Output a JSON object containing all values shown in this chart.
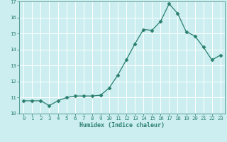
{
  "x": [
    0,
    1,
    2,
    3,
    4,
    5,
    6,
    7,
    8,
    9,
    10,
    11,
    12,
    13,
    14,
    15,
    16,
    17,
    18,
    19,
    20,
    21,
    22,
    23
  ],
  "y": [
    10.8,
    10.8,
    10.8,
    10.5,
    10.8,
    11.0,
    11.1,
    11.1,
    11.1,
    11.15,
    11.6,
    12.4,
    13.35,
    14.35,
    15.25,
    15.2,
    15.75,
    16.85,
    16.25,
    15.1,
    14.85,
    14.15,
    13.35,
    13.65
  ],
  "xlabel": "Humidex (Indice chaleur)",
  "ylim": [
    10,
    17
  ],
  "xlim": [
    -0.5,
    23.5
  ],
  "line_color": "#2a7f6f",
  "marker": "D",
  "markersize": 2.5,
  "bg_color": "#cceef0",
  "grid_color": "#ffffff",
  "tick_label_color": "#2a7f6f",
  "label_color": "#2a7f6f",
  "yticks": [
    10,
    11,
    12,
    13,
    14,
    15,
    16,
    17
  ],
  "xticks": [
    0,
    1,
    2,
    3,
    4,
    5,
    6,
    7,
    8,
    9,
    10,
    11,
    12,
    13,
    14,
    15,
    16,
    17,
    18,
    19,
    20,
    21,
    22,
    23
  ]
}
